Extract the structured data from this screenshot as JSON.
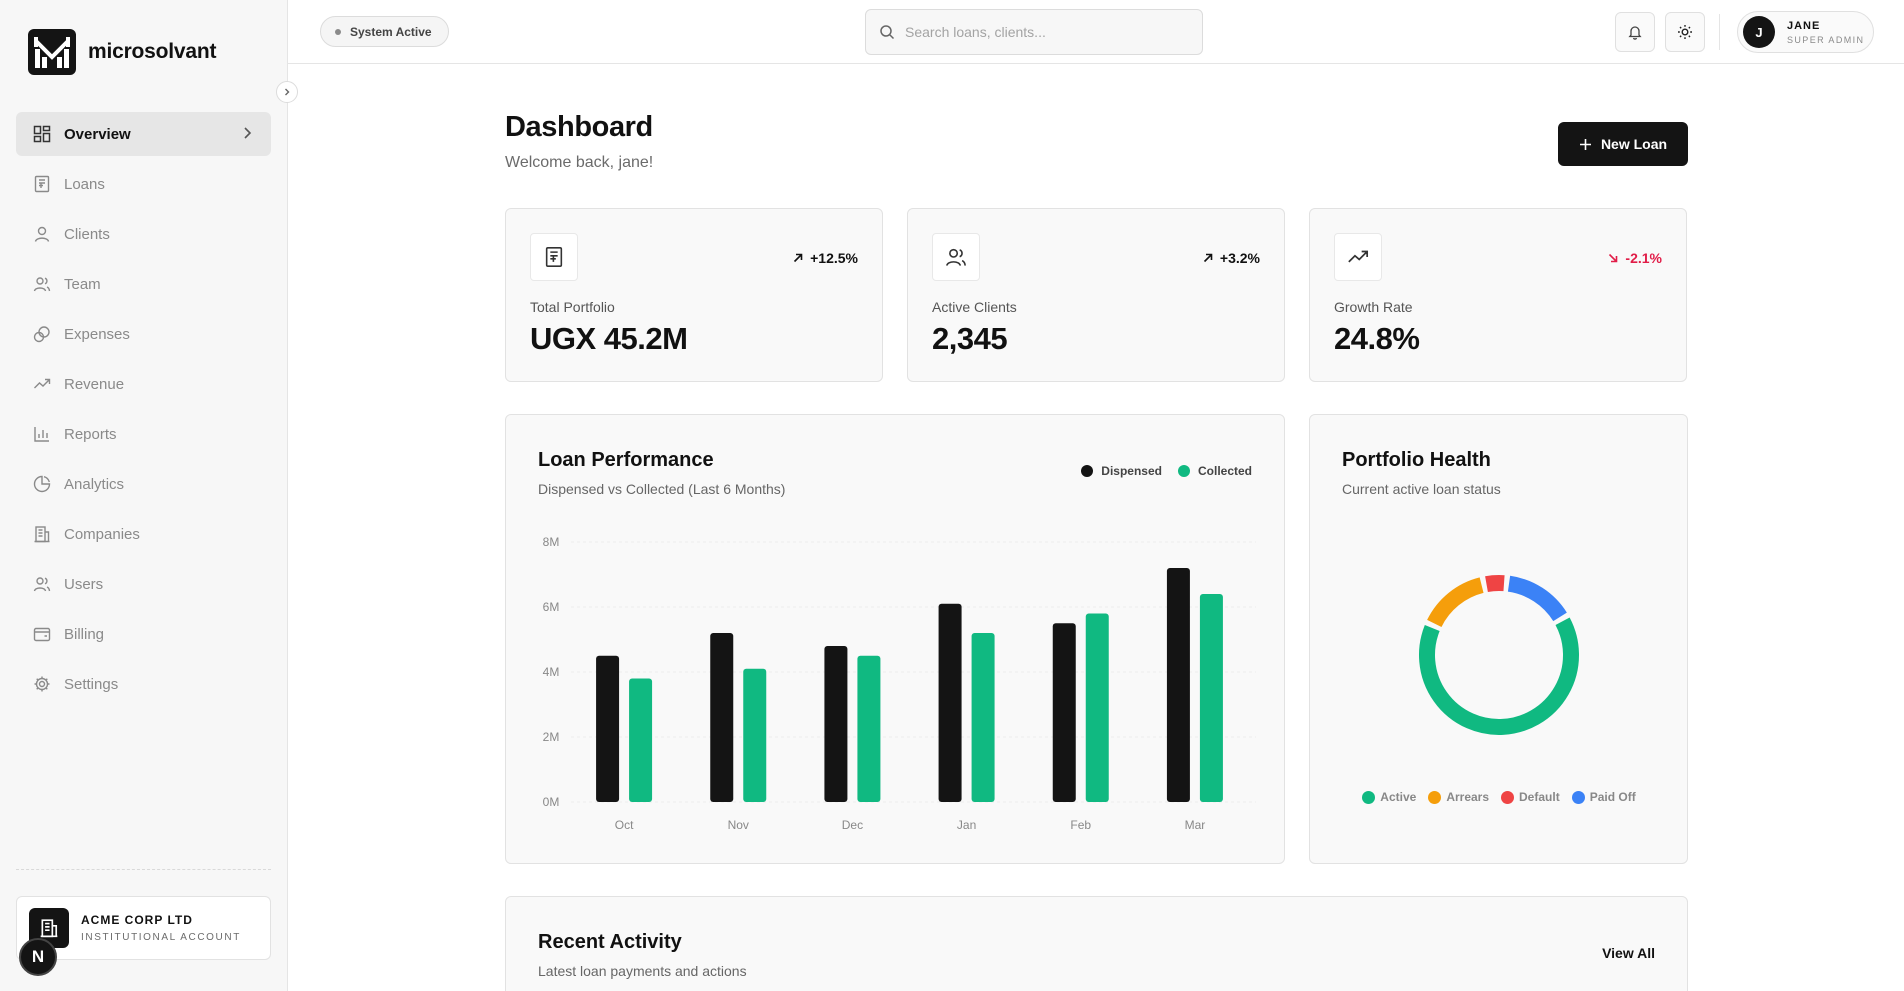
{
  "app": {
    "name": "microsolvant"
  },
  "sidebar": {
    "items": [
      {
        "label": "Overview",
        "icon": "overview-icon",
        "active": true
      },
      {
        "label": "Loans",
        "icon": "loans-icon"
      },
      {
        "label": "Clients",
        "icon": "clients-icon"
      },
      {
        "label": "Team",
        "icon": "team-icon"
      },
      {
        "label": "Expenses",
        "icon": "expenses-icon"
      },
      {
        "label": "Revenue",
        "icon": "revenue-icon"
      },
      {
        "label": "Reports",
        "icon": "reports-icon"
      },
      {
        "label": "Analytics",
        "icon": "analytics-icon"
      },
      {
        "label": "Companies",
        "icon": "companies-icon"
      },
      {
        "label": "Users",
        "icon": "users-icon"
      },
      {
        "label": "Billing",
        "icon": "billing-icon"
      },
      {
        "label": "Settings",
        "icon": "settings-icon"
      }
    ],
    "account": {
      "name": "ACME CORP LTD",
      "type": "INSTITUTIONAL ACCOUNT"
    },
    "dev_badge": "N"
  },
  "topbar": {
    "status": "System Active",
    "search_placeholder": "Search loans, clients...",
    "user": {
      "initial": "J",
      "name": "JANE",
      "role": "SUPER ADMIN"
    }
  },
  "header": {
    "title": "Dashboard",
    "subtitle": "Welcome back, jane!",
    "new_loan_label": "New Loan"
  },
  "stats": [
    {
      "label": "Total Portfolio",
      "value": "UGX 45.2M",
      "trend": "+12.5%",
      "direction": "up",
      "icon": "receipt-icon"
    },
    {
      "label": "Active Clients",
      "value": "2,345",
      "trend": "+3.2%",
      "direction": "up",
      "icon": "users-icon"
    },
    {
      "label": "Growth Rate",
      "value": "24.8%",
      "trend": "-2.1%",
      "direction": "down",
      "icon": "trending-up-icon"
    }
  ],
  "colors": {
    "dispensed": "#141414",
    "collected": "#10b981",
    "active": "#10b981",
    "arrears": "#f59e0b",
    "default": "#ef4444",
    "paid_off": "#3b82f6",
    "negative": "#e11d48"
  },
  "chart_data": [
    {
      "type": "bar",
      "title": "Loan Performance",
      "subtitle": "Dispensed vs Collected (Last 6 Months)",
      "categories": [
        "Oct",
        "Nov",
        "Dec",
        "Jan",
        "Feb",
        "Mar"
      ],
      "series": [
        {
          "name": "Dispensed",
          "values": [
            4.5,
            5.2,
            4.8,
            6.1,
            5.5,
            7.2
          ]
        },
        {
          "name": "Collected",
          "values": [
            3.8,
            4.1,
            4.5,
            5.2,
            5.8,
            6.4
          ]
        }
      ],
      "y_ticks": [
        "0M",
        "2M",
        "4M",
        "6M",
        "8M"
      ],
      "ylim": [
        0,
        8
      ],
      "grid": true,
      "legend_position": "top-right"
    },
    {
      "type": "pie",
      "title": "Portfolio Health",
      "subtitle": "Current active loan status",
      "series": [
        {
          "name": "Active",
          "values": [
            65
          ]
        },
        {
          "name": "Arrears",
          "values": [
            15
          ]
        },
        {
          "name": "Default",
          "values": [
            5
          ]
        },
        {
          "name": "Paid Off",
          "values": [
            15
          ]
        }
      ],
      "donut": true,
      "legend_position": "bottom"
    }
  ],
  "activity": {
    "title": "Recent Activity",
    "subtitle": "Latest loan payments and actions",
    "view_all": "View All"
  }
}
